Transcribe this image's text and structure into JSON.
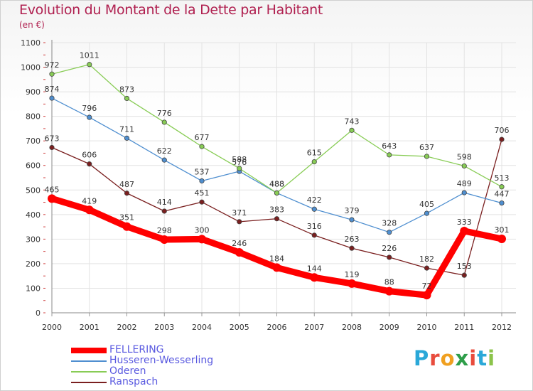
{
  "chart_data": {
    "type": "line",
    "title": "Evolution du Montant de la Dette par Habitant",
    "subtitle": "(en €)",
    "categories": [
      "2000",
      "2001",
      "2002",
      "2003",
      "2004",
      "2005",
      "2006",
      "2007",
      "2008",
      "2009",
      "2010",
      "2011",
      "2012"
    ],
    "ylim": [
      0,
      1100
    ],
    "yticks": [
      0,
      100,
      200,
      300,
      400,
      500,
      600,
      700,
      800,
      900,
      1000,
      1100
    ],
    "grid": true,
    "legend_position": "bottom-left",
    "series": [
      {
        "name": "FELLERING",
        "color": "#ff0000",
        "values": [
          465,
          419,
          351,
          298,
          300,
          246,
          184,
          144,
          119,
          88,
          72,
          333,
          301
        ]
      },
      {
        "name": "Husseren-Wesserling",
        "color": "#4f8fd0",
        "values": [
          874,
          796,
          711,
          622,
          537,
          576,
          488,
          422,
          379,
          328,
          405,
          489,
          447
        ]
      },
      {
        "name": "Oderen",
        "color": "#88cc55",
        "values": [
          972,
          1011,
          873,
          776,
          677,
          588,
          488,
          615,
          743,
          643,
          637,
          598,
          513
        ]
      },
      {
        "name": "Ranspach",
        "color": "#7a1f1f",
        "values": [
          673,
          606,
          487,
          414,
          451,
          371,
          383,
          316,
          263,
          226,
          182,
          153,
          706
        ]
      }
    ]
  },
  "logo": {
    "letters": [
      "P",
      "r",
      "o",
      "x",
      "i",
      "t",
      "i"
    ],
    "colors": [
      "#2aa8d8",
      "#e84c3d",
      "#f0a020",
      "#2e9e4a",
      "#e84c3d",
      "#2aa8d8",
      "#8bc34a"
    ]
  }
}
